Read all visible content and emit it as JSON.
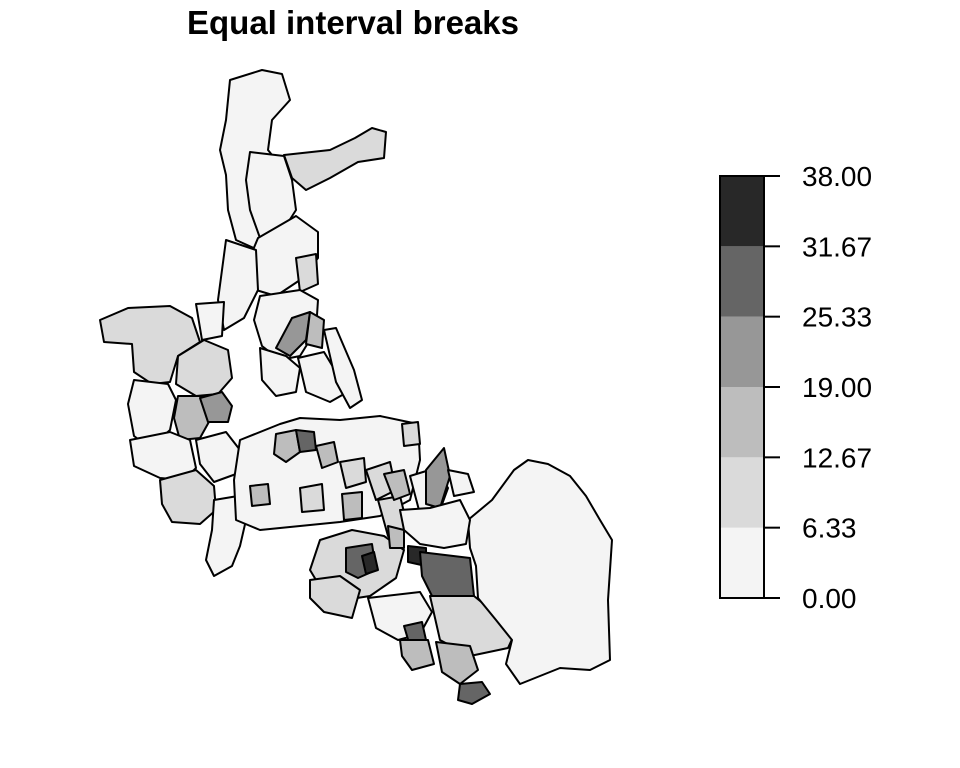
{
  "title": "Equal interval breaks",
  "legend": {
    "breaks": [
      "0.00",
      "6.33",
      "12.67",
      "19.00",
      "25.33",
      "31.67",
      "38.00"
    ],
    "colors": [
      "#f4f4f4",
      "#dadada",
      "#bdbdbd",
      "#979797",
      "#656565",
      "#282828"
    ]
  }
}
